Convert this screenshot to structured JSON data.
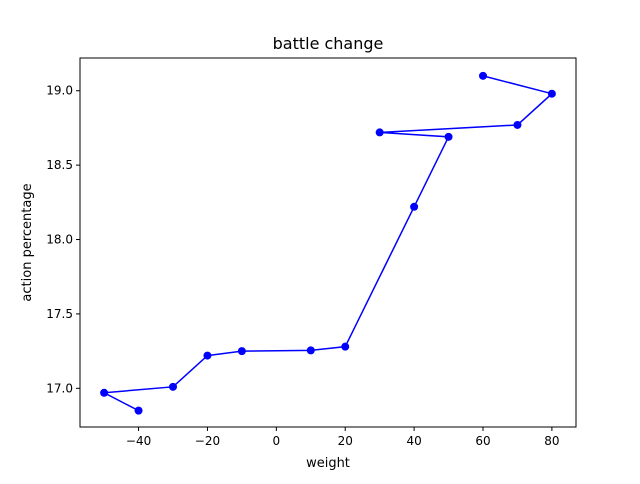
{
  "chart_data": {
    "type": "line",
    "title": "battle change",
    "xlabel": "weight",
    "ylabel": "action percentage",
    "xlim": [
      -57,
      87
    ],
    "ylim": [
      16.74,
      19.22
    ],
    "xticks": [
      -40,
      -20,
      0,
      20,
      40,
      60,
      80
    ],
    "xtick_labels": [
      "−40",
      "−20",
      "0",
      "20",
      "40",
      "60",
      "80"
    ],
    "yticks": [
      17.0,
      17.5,
      18.0,
      18.5,
      19.0
    ],
    "ytick_labels": [
      "17.0",
      "17.5",
      "18.0",
      "18.5",
      "19.0"
    ],
    "grid": false,
    "series": [
      {
        "color": "#0000ff",
        "marker": "circle",
        "points": [
          {
            "x": -40,
            "y": 16.85
          },
          {
            "x": -50,
            "y": 16.97
          },
          {
            "x": -30,
            "y": 17.01
          },
          {
            "x": -20,
            "y": 17.22
          },
          {
            "x": -10,
            "y": 17.25
          },
          {
            "x": 10,
            "y": 17.255
          },
          {
            "x": 20,
            "y": 17.28
          },
          {
            "x": 40,
            "y": 18.22
          },
          {
            "x": 50,
            "y": 18.69
          },
          {
            "x": 30,
            "y": 18.72
          },
          {
            "x": 70,
            "y": 18.77
          },
          {
            "x": 80,
            "y": 18.98
          },
          {
            "x": 60,
            "y": 19.1
          }
        ]
      }
    ]
  }
}
